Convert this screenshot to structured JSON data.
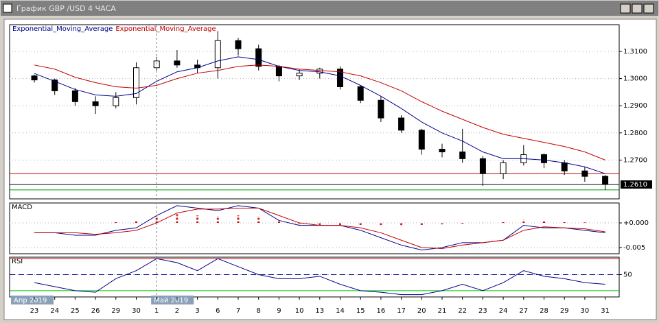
{
  "window": {
    "title": "График GBP /USD  4 ЧАСА"
  },
  "chart_data": [
    {
      "type": "candlestick",
      "categories": [
        "23",
        "24",
        "25",
        "26",
        "29",
        "30",
        "1",
        "2",
        "3",
        "6",
        "7",
        "8",
        "9",
        "10",
        "13",
        "14",
        "15",
        "16",
        "17",
        "20",
        "21",
        "22",
        "23",
        "24",
        "27",
        "28",
        "29",
        "30",
        "31"
      ],
      "period_labels": [
        {
          "at": 0,
          "label": "Апр 2019"
        },
        {
          "at": 6,
          "label": "Май 2019"
        }
      ],
      "open": [
        1.301,
        1.2995,
        1.2955,
        1.2915,
        1.29,
        1.293,
        1.304,
        1.3065,
        1.305,
        1.304,
        1.314,
        1.311,
        1.3045,
        1.301,
        1.302,
        1.3035,
        1.297,
        1.292,
        1.2855,
        1.281,
        1.274,
        1.273,
        1.2705,
        1.265,
        1.269,
        1.272,
        1.269,
        1.266,
        1.264
      ],
      "high": [
        1.3015,
        1.3,
        1.2965,
        1.2935,
        1.295,
        1.306,
        1.308,
        1.3105,
        1.307,
        1.3175,
        1.315,
        1.3125,
        1.305,
        1.3035,
        1.304,
        1.3045,
        1.2975,
        1.2935,
        1.2865,
        1.2815,
        1.276,
        1.2815,
        1.2715,
        1.27,
        1.2755,
        1.2725,
        1.27,
        1.2675,
        1.2645
      ],
      "low": [
        1.2985,
        1.294,
        1.29,
        1.287,
        1.289,
        1.2905,
        1.303,
        1.304,
        1.302,
        1.3,
        1.3085,
        1.303,
        1.299,
        1.2995,
        1.3,
        1.296,
        1.291,
        1.284,
        1.28,
        1.272,
        1.271,
        1.269,
        1.2605,
        1.263,
        1.268,
        1.267,
        1.2645,
        1.262,
        1.259
      ],
      "close": [
        1.2995,
        1.2955,
        1.2915,
        1.29,
        1.293,
        1.304,
        1.3065,
        1.305,
        1.304,
        1.314,
        1.311,
        1.3045,
        1.301,
        1.302,
        1.3035,
        1.297,
        1.292,
        1.2855,
        1.281,
        1.274,
        1.273,
        1.2705,
        1.265,
        1.269,
        1.272,
        1.269,
        1.266,
        1.264,
        1.261
      ],
      "series": [
        {
          "name": "Exponential_Moving_Average",
          "color": "#00008b",
          "values": [
            1.3019,
            1.299,
            1.296,
            1.294,
            1.2935,
            1.2945,
            1.299,
            1.3025,
            1.304,
            1.3065,
            1.308,
            1.307,
            1.3045,
            1.303,
            1.3025,
            1.301,
            1.2975,
            1.2935,
            1.289,
            1.284,
            1.28,
            1.277,
            1.273,
            1.2705,
            1.2705,
            1.27,
            1.269,
            1.2675,
            1.265
          ]
        },
        {
          "name": "Exponential_Moving_Average",
          "color": "#c00000",
          "values": [
            1.305,
            1.3035,
            1.3005,
            1.2985,
            1.297,
            1.2965,
            1.2975,
            1.3,
            1.302,
            1.303,
            1.3045,
            1.305,
            1.3045,
            1.3035,
            1.303,
            1.3025,
            1.301,
            1.2985,
            1.2955,
            1.2915,
            1.288,
            1.285,
            1.282,
            1.2795,
            1.278,
            1.2765,
            1.275,
            1.273,
            1.27
          ]
        }
      ],
      "hlines": [
        {
          "value": 1.265,
          "color": "#c00000"
        },
        {
          "value": 1.261,
          "color": "#000000"
        },
        {
          "value": 1.259,
          "color": "#00a000"
        }
      ],
      "last_price": {
        "value": 1.261,
        "label": "1.2610"
      },
      "ylim": [
        1.2557,
        1.3196
      ],
      "yticks": [
        {
          "value": 1.27,
          "label": "1.2700"
        },
        {
          "value": 1.28,
          "label": "1.2800"
        },
        {
          "value": 1.29,
          "label": "1.2900"
        },
        {
          "value": 1.3,
          "label": "1.3000"
        },
        {
          "value": 1.31,
          "label": "1.3100"
        }
      ],
      "grid": true
    },
    {
      "type": "line",
      "title": "MACD",
      "series": [
        {
          "color": "#00008b",
          "values": [
            -0.002,
            -0.002,
            -0.0025,
            -0.0025,
            -0.0015,
            -0.001,
            0.0015,
            0.0035,
            0.003,
            0.0025,
            0.0035,
            0.003,
            0.0005,
            -0.0005,
            -0.0005,
            -0.0005,
            -0.0015,
            -0.003,
            -0.0045,
            -0.0055,
            -0.005,
            -0.004,
            -0.004,
            -0.0035,
            -0.0005,
            -0.001,
            -0.001,
            -0.0015,
            -0.002
          ]
        },
        {
          "color": "#c00000",
          "values": [
            -0.002,
            -0.002,
            -0.002,
            -0.0023,
            -0.002,
            -0.0015,
            0.0,
            0.002,
            0.0028,
            0.0028,
            0.003,
            0.003,
            0.0015,
            0.0,
            -0.0005,
            -0.0005,
            -0.001,
            -0.002,
            -0.0035,
            -0.005,
            -0.0052,
            -0.0045,
            -0.004,
            -0.0035,
            -0.0015,
            -0.0008,
            -0.001,
            -0.0012,
            -0.0018
          ]
        }
      ],
      "histogram": {
        "color": "#c00000",
        "values": [
          0,
          0,
          0,
          0,
          0.0002,
          0.0005,
          0.0012,
          0.0018,
          0.0015,
          0.0012,
          0.0015,
          0.0012,
          0.0005,
          -0.0003,
          -0.0005,
          -0.0005,
          -0.0005,
          -0.0006,
          -0.0006,
          -0.0005,
          -0.0003,
          -0.0002,
          0,
          0.0002,
          0.0006,
          0.0004,
          0.0002,
          0.0001,
          0
        ]
      },
      "ylim": [
        -0.00625,
        0.0039
      ],
      "yticks": [
        {
          "value": 0,
          "label": "+0.000"
        },
        {
          "value": -0.005,
          "label": "-0.005"
        }
      ],
      "grid": true
    },
    {
      "type": "line",
      "title": "RSI",
      "series": [
        {
          "color": "#00008b",
          "values": [
            40,
            35,
            30,
            28,
            45,
            55,
            70,
            65,
            55,
            70,
            60,
            50,
            45,
            45,
            48,
            38,
            30,
            28,
            25,
            25,
            30,
            38,
            30,
            40,
            55,
            48,
            45,
            40,
            38
          ]
        }
      ],
      "levels": [
        {
          "value": 70,
          "color": "#c00000"
        },
        {
          "value": 50,
          "color": "#00008b"
        },
        {
          "value": 30,
          "color": "#00c000"
        }
      ],
      "ylim": [
        23,
        71
      ],
      "yticks": [
        50
      ],
      "grid": true
    }
  ]
}
